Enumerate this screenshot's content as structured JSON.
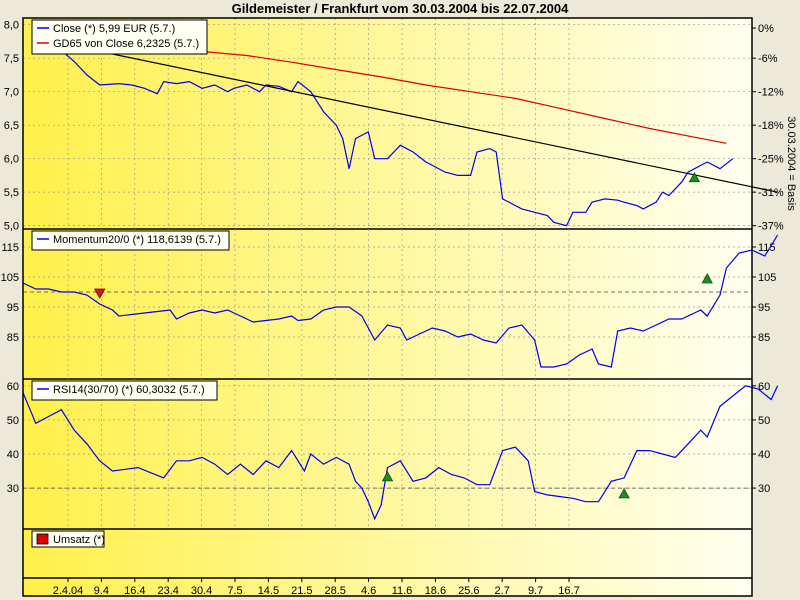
{
  "title": "Gildemeister / Frankfurt vom 30.03.2004 bis 22.07.2004",
  "x_ticks": [
    "2.4.04",
    "9.4",
    "16.4",
    "23.4",
    "30.4",
    "7.5",
    "14.5",
    "21.5",
    "28.5",
    "4.6",
    "11.6",
    "18.6",
    "25.6",
    "2.7",
    "9.7",
    "16.7"
  ],
  "colors": {
    "background_gradient_left": "#fff176",
    "background_gradient_right": "#fffff0",
    "close_line": "#0000ee",
    "gd_line": "#dd0000",
    "trend_line": "#000000",
    "signal_buy": "#1a8f1a",
    "signal_sell": "#dd1111",
    "volume_legend": "#dd0000"
  },
  "chart_data": [
    {
      "type": "line",
      "panel": "price",
      "legend": [
        "Close (*) 5,99 EUR (5.7.)",
        "GD65 von Close 6,2325 (5.7.)"
      ],
      "y_ticks": [
        "8,0",
        "7,5",
        "7,0",
        "6,5",
        "6,0",
        "5,5",
        "5,0"
      ],
      "y_tick_values": [
        8.0,
        7.5,
        7.0,
        6.5,
        6.0,
        5.5,
        5.0
      ],
      "right_ticks": [
        "0%",
        "-6%",
        "-12%",
        "-18%",
        "-25%",
        "-31%",
        "-37%"
      ],
      "right_tick_values": [
        7.95,
        7.5,
        7.0,
        6.5,
        6.0,
        5.5,
        5.0
      ],
      "right_axis_label": "30.03.2004 = Basis",
      "ylim": [
        4.95,
        8.1
      ],
      "xlim": [
        0,
        114
      ],
      "series": [
        {
          "name": "Close (*) 5,99 EUR (5.7.)",
          "color": "#0000ee",
          "points": [
            [
              3,
              8.0
            ],
            [
              5,
              7.7
            ],
            [
              8,
              7.45
            ],
            [
              10,
              7.25
            ],
            [
              12,
              7.1
            ],
            [
              15,
              7.12
            ],
            [
              17,
              7.1
            ],
            [
              19,
              7.05
            ],
            [
              21,
              6.97
            ],
            [
              22,
              7.15
            ],
            [
              24,
              7.12
            ],
            [
              26,
              7.15
            ],
            [
              28,
              7.05
            ],
            [
              30,
              7.1
            ],
            [
              32,
              7.0
            ],
            [
              33,
              7.05
            ],
            [
              35,
              7.1
            ],
            [
              37,
              7.0
            ],
            [
              38,
              7.1
            ],
            [
              40,
              7.08
            ],
            [
              42,
              7.0
            ],
            [
              43,
              7.15
            ],
            [
              45,
              7.0
            ],
            [
              47,
              6.7
            ],
            [
              49,
              6.5
            ],
            [
              50,
              6.3
            ],
            [
              51,
              5.85
            ],
            [
              52,
              6.3
            ],
            [
              54,
              6.4
            ],
            [
              55,
              6.0
            ],
            [
              57,
              6.0
            ],
            [
              59,
              6.2
            ],
            [
              61,
              6.1
            ],
            [
              63,
              5.95
            ],
            [
              64,
              5.9
            ],
            [
              66,
              5.8
            ],
            [
              68,
              5.75
            ],
            [
              70,
              5.75
            ],
            [
              71,
              6.1
            ],
            [
              73,
              6.15
            ],
            [
              74,
              6.1
            ],
            [
              75,
              5.4
            ],
            [
              77,
              5.3
            ],
            [
              78,
              5.25
            ],
            [
              80,
              5.2
            ],
            [
              82,
              5.15
            ],
            [
              83,
              5.05
            ],
            [
              85,
              5.0
            ],
            [
              86,
              5.2
            ],
            [
              88,
              5.2
            ],
            [
              89,
              5.35
            ],
            [
              91,
              5.4
            ],
            [
              93,
              5.38
            ],
            [
              94,
              5.35
            ],
            [
              96,
              5.3
            ],
            [
              97,
              5.25
            ],
            [
              99,
              5.35
            ],
            [
              100,
              5.5
            ],
            [
              101,
              5.45
            ],
            [
              103,
              5.65
            ],
            [
              104,
              5.8
            ],
            [
              106,
              5.9
            ],
            [
              107,
              5.95
            ],
            [
              109,
              5.85
            ],
            [
              111,
              6.0
            ]
          ]
        },
        {
          "name": "GD65 von Close 6,2325 (5.7.)",
          "color": "#dd0000",
          "points": [
            [
              28,
              7.6
            ],
            [
              35,
              7.54
            ],
            [
              42,
              7.44
            ],
            [
              49,
              7.33
            ],
            [
              56,
              7.22
            ],
            [
              63,
              7.1
            ],
            [
              70,
              7.0
            ],
            [
              77,
              6.9
            ],
            [
              84,
              6.75
            ],
            [
              91,
              6.6
            ],
            [
              98,
              6.45
            ],
            [
              105,
              6.32
            ],
            [
              110,
              6.23
            ]
          ]
        },
        {
          "name": "trend",
          "color": "#000000",
          "points": [
            [
              3,
              7.78
            ],
            [
              118,
              5.5
            ]
          ]
        }
      ],
      "signals": [
        {
          "x": 105,
          "y": 5.7,
          "kind": "buy"
        }
      ]
    },
    {
      "type": "line",
      "panel": "momentum",
      "legend": [
        "Momentum20/0 (*) 118,6139 (5.7.)"
      ],
      "y_ticks": [
        "115",
        "105",
        "95",
        "85"
      ],
      "y_tick_values": [
        115,
        105,
        95,
        85
      ],
      "right_ticks": [
        "115",
        "105",
        "95",
        "85"
      ],
      "ylim": [
        71,
        121
      ],
      "xlim": [
        0,
        114
      ],
      "reference_line": 100,
      "series": [
        {
          "name": "Momentum20/0 (*) 118,6139 (5.7.)",
          "color": "#0000ee",
          "points": [
            [
              0,
              103
            ],
            [
              2,
              101
            ],
            [
              4,
              101
            ],
            [
              6,
              100
            ],
            [
              8,
              100
            ],
            [
              10,
              99
            ],
            [
              12,
              96
            ],
            [
              14,
              94
            ],
            [
              15,
              92
            ],
            [
              17,
              92.5
            ],
            [
              19,
              93
            ],
            [
              21,
              93.5
            ],
            [
              23,
              94
            ],
            [
              24,
              91
            ],
            [
              26,
              93
            ],
            [
              28,
              94
            ],
            [
              30,
              93
            ],
            [
              32,
              94
            ],
            [
              34,
              92
            ],
            [
              36,
              90
            ],
            [
              38,
              90.5
            ],
            [
              40,
              91
            ],
            [
              42,
              92
            ],
            [
              43,
              90.5
            ],
            [
              45,
              91
            ],
            [
              47,
              94
            ],
            [
              49,
              95
            ],
            [
              51,
              95
            ],
            [
              53,
              92
            ],
            [
              55,
              84
            ],
            [
              57,
              89
            ],
            [
              59,
              88
            ],
            [
              60,
              84
            ],
            [
              62,
              86
            ],
            [
              64,
              88
            ],
            [
              66,
              87
            ],
            [
              68,
              85
            ],
            [
              70,
              86
            ],
            [
              72,
              84
            ],
            [
              74,
              83
            ],
            [
              76,
              88
            ],
            [
              78,
              89
            ],
            [
              80,
              84
            ],
            [
              81,
              75
            ],
            [
              83,
              75
            ],
            [
              85,
              76
            ],
            [
              87,
              79
            ],
            [
              89,
              81
            ],
            [
              90,
              76
            ],
            [
              92,
              75
            ],
            [
              93,
              87
            ],
            [
              95,
              88
            ],
            [
              97,
              87
            ],
            [
              99,
              89
            ],
            [
              101,
              91
            ],
            [
              103,
              91
            ],
            [
              105,
              93
            ],
            [
              106,
              94
            ],
            [
              107,
              92
            ],
            [
              109,
              99
            ],
            [
              110,
              108
            ],
            [
              112,
              113
            ],
            [
              114,
              114
            ],
            [
              116,
              112
            ],
            [
              118,
              119
            ]
          ]
        }
      ],
      "signals": [
        {
          "x": 12,
          "y": 100,
          "kind": "sell"
        },
        {
          "x": 107,
          "y": 104,
          "kind": "buy"
        }
      ]
    },
    {
      "type": "line",
      "panel": "rsi",
      "legend": [
        "RSI14(30/70) (*) 60,3032 (5.7.)"
      ],
      "y_ticks": [
        "60",
        "50",
        "40",
        "30"
      ],
      "y_tick_values": [
        60,
        50,
        40,
        30
      ],
      "right_ticks": [
        "60",
        "50",
        "40",
        "30"
      ],
      "ylim": [
        18,
        62
      ],
      "xlim": [
        0,
        114
      ],
      "reference_line": 30,
      "series": [
        {
          "name": "RSI14(30/70) (*) 60,3032 (5.7.)",
          "color": "#0000ee",
          "points": [
            [
              0,
              58
            ],
            [
              2,
              49
            ],
            [
              4,
              51
            ],
            [
              6,
              53
            ],
            [
              8,
              47
            ],
            [
              10,
              43
            ],
            [
              12,
              38
            ],
            [
              14,
              35
            ],
            [
              16,
              35.5
            ],
            [
              18,
              36
            ],
            [
              20,
              34.5
            ],
            [
              22,
              33
            ],
            [
              24,
              38
            ],
            [
              26,
              38
            ],
            [
              28,
              39
            ],
            [
              30,
              37
            ],
            [
              32,
              34
            ],
            [
              34,
              37
            ],
            [
              36,
              34
            ],
            [
              38,
              38
            ],
            [
              40,
              36
            ],
            [
              42,
              41
            ],
            [
              44,
              35
            ],
            [
              45,
              40
            ],
            [
              47,
              37
            ],
            [
              49,
              39
            ],
            [
              51,
              37
            ],
            [
              52,
              32
            ],
            [
              53,
              30
            ],
            [
              54,
              26
            ],
            [
              55,
              21
            ],
            [
              56,
              25
            ],
            [
              57,
              36
            ],
            [
              59,
              38
            ],
            [
              61,
              32
            ],
            [
              63,
              33
            ],
            [
              65,
              36
            ],
            [
              67,
              34
            ],
            [
              69,
              33
            ],
            [
              71,
              31
            ],
            [
              73,
              31
            ],
            [
              75,
              41
            ],
            [
              77,
              42
            ],
            [
              79,
              38
            ],
            [
              80,
              29
            ],
            [
              82,
              28
            ],
            [
              84,
              27.5
            ],
            [
              86,
              27
            ],
            [
              88,
              26
            ],
            [
              90,
              26
            ],
            [
              92,
              32
            ],
            [
              94,
              33
            ],
            [
              96,
              41
            ],
            [
              98,
              41
            ],
            [
              100,
              40
            ],
            [
              102,
              39
            ],
            [
              104,
              43
            ],
            [
              106,
              47
            ],
            [
              107,
              45
            ],
            [
              109,
              54
            ],
            [
              111,
              57
            ],
            [
              113,
              60
            ],
            [
              115,
              59
            ],
            [
              117,
              56
            ],
            [
              118,
              60
            ]
          ]
        }
      ],
      "signals": [
        {
          "x": 57,
          "y": 33,
          "kind": "buy"
        },
        {
          "x": 94,
          "y": 28,
          "kind": "buy"
        }
      ]
    },
    {
      "type": "bar",
      "panel": "volume",
      "legend": [
        "Umsatz (*)"
      ],
      "values": []
    }
  ]
}
